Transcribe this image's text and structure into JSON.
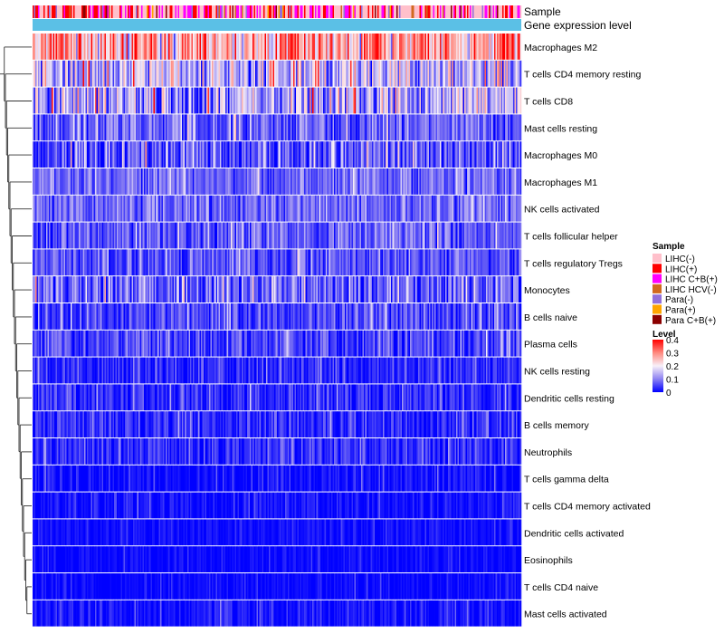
{
  "chart_data": {
    "type": "heatmap",
    "title": "",
    "annotations": {
      "sample_label": "Sample",
      "expression_label": "Gene expression level",
      "expression_color": "#5bc0e6"
    },
    "rows": [
      {
        "label": "Macrophages M2",
        "mean": 0.27,
        "spread": 0.11
      },
      {
        "label": "T cells CD4 memory resting",
        "mean": 0.15,
        "spread": 0.1
      },
      {
        "label": "T cells CD8",
        "mean": 0.13,
        "spread": 0.1
      },
      {
        "label": "Mast cells resting",
        "mean": 0.07,
        "spread": 0.06
      },
      {
        "label": "Macrophages M0",
        "mean": 0.06,
        "spread": 0.08
      },
      {
        "label": "Macrophages M1",
        "mean": 0.08,
        "spread": 0.05
      },
      {
        "label": "NK cells activated",
        "mean": 0.08,
        "spread": 0.05
      },
      {
        "label": "T cells follicular helper",
        "mean": 0.07,
        "spread": 0.05
      },
      {
        "label": "T cells regulatory  Tregs",
        "mean": 0.06,
        "spread": 0.05
      },
      {
        "label": "Monocytes",
        "mean": 0.08,
        "spread": 0.07
      },
      {
        "label": "B cells naive",
        "mean": 0.05,
        "spread": 0.05
      },
      {
        "label": "Plasma cells",
        "mean": 0.05,
        "spread": 0.05
      },
      {
        "label": "NK cells resting",
        "mean": 0.03,
        "spread": 0.04
      },
      {
        "label": "Dendritic cells resting",
        "mean": 0.03,
        "spread": 0.04
      },
      {
        "label": "B cells memory",
        "mean": 0.03,
        "spread": 0.04
      },
      {
        "label": "Neutrophils",
        "mean": 0.03,
        "spread": 0.04
      },
      {
        "label": "T cells gamma delta",
        "mean": 0.01,
        "spread": 0.03
      },
      {
        "label": "T cells CD4 memory activated",
        "mean": 0.01,
        "spread": 0.03
      },
      {
        "label": "Dendritic cells activated",
        "mean": 0.01,
        "spread": 0.02
      },
      {
        "label": "Eosinophils",
        "mean": 0.005,
        "spread": 0.02
      },
      {
        "label": "T cells CD4 naive",
        "mean": 0.005,
        "spread": 0.02
      },
      {
        "label": "Mast cells activated",
        "mean": 0.01,
        "spread": 0.03
      }
    ],
    "columns_approx": 360,
    "color_scale": {
      "stops": [
        0,
        0.1,
        0.2,
        0.3,
        0.4
      ],
      "colors": [
        "#0000ff",
        "#8d82f2",
        "#f8f0f8",
        "#ff8a80",
        "#ff0000"
      ],
      "range": [
        0,
        0.4
      ]
    },
    "legend": {
      "sample_title": "Sample",
      "sample_entries": [
        {
          "label": "LIHC(-)",
          "color": "#ffc0cb"
        },
        {
          "label": "LIHC(+)",
          "color": "#ff0000"
        },
        {
          "label": "LIHC C+B(+)",
          "color": "#ff00ff"
        },
        {
          "label": "LIHC HCV(-)",
          "color": "#d2691e"
        },
        {
          "label": "Para(-)",
          "color": "#9370db"
        },
        {
          "label": "Para(+)",
          "color": "#ffa500"
        },
        {
          "label": "Para C+B(+)",
          "color": "#8b0000"
        }
      ],
      "level_title": "Level",
      "level_ticks": [
        "0.4",
        "0.3",
        "0.2",
        "0.1",
        "0"
      ]
    },
    "sample_composition": [
      {
        "label": "LIHC(-)",
        "weight": 0.45
      },
      {
        "label": "LIHC(+)",
        "weight": 0.2
      },
      {
        "label": "LIHC C+B(+)",
        "weight": 0.22
      },
      {
        "label": "LIHC HCV(-)",
        "weight": 0.03
      },
      {
        "label": "Para(-)",
        "weight": 0.04
      },
      {
        "label": "Para(+)",
        "weight": 0.03
      },
      {
        "label": "Para C+B(+)",
        "weight": 0.03
      }
    ]
  }
}
